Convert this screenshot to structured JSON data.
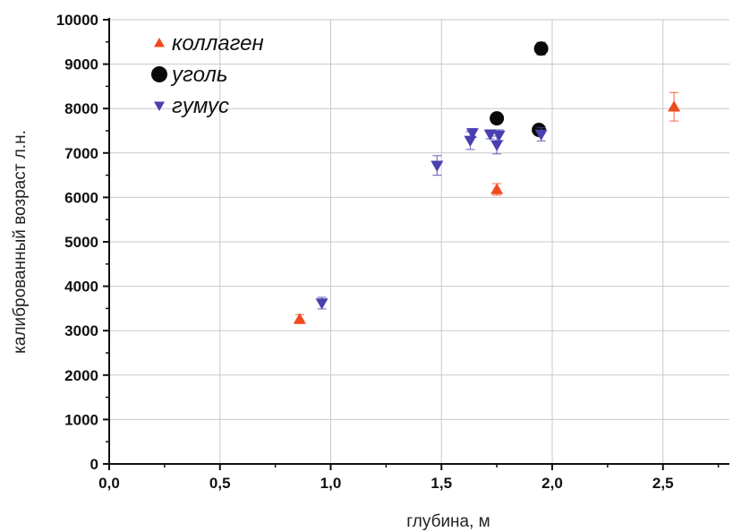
{
  "chart_data": {
    "type": "scatter",
    "xlabel": "глубина, м",
    "ylabel": "калиброванный возраст л.н.",
    "xlim": [
      0,
      2.8
    ],
    "ylim": [
      0,
      10000
    ],
    "xticks": [
      0.0,
      0.5,
      1.0,
      1.5,
      2.0,
      2.5
    ],
    "xtick_labels": [
      "0,0",
      "0,5",
      "1,0",
      "1,5",
      "2,0",
      "2,5"
    ],
    "yticks": [
      0,
      1000,
      2000,
      3000,
      4000,
      5000,
      6000,
      7000,
      8000,
      9000,
      10000
    ],
    "ytick_labels": [
      "0",
      "1000",
      "2000",
      "3000",
      "4000",
      "5000",
      "6000",
      "7000",
      "8000",
      "9000",
      "10000"
    ],
    "grid": true,
    "legend_position": "top-left",
    "series": [
      {
        "name": "коллаген",
        "marker": "triangle-up",
        "color": "#f04a1e",
        "points": [
          {
            "x": 0.86,
            "y": 3260,
            "err": 100
          },
          {
            "x": 1.75,
            "y": 6180,
            "err": 130
          },
          {
            "x": 2.55,
            "y": 8040,
            "err": 320
          }
        ]
      },
      {
        "name": "уголь",
        "marker": "circle",
        "color": "#0a0a0a",
        "points": [
          {
            "x": 1.75,
            "y": 7780,
            "err": 120
          },
          {
            "x": 1.95,
            "y": 9350,
            "err": 140
          },
          {
            "x": 1.94,
            "y": 7520,
            "err": 80
          }
        ]
      },
      {
        "name": "гумус",
        "marker": "triangle-down",
        "color": "#4a3fb0",
        "points": [
          {
            "x": 0.96,
            "y": 3620,
            "err": 130
          },
          {
            "x": 1.48,
            "y": 6720,
            "err": 220
          },
          {
            "x": 1.63,
            "y": 7280,
            "err": 200
          },
          {
            "x": 1.64,
            "y": 7450,
            "err": 100
          },
          {
            "x": 1.72,
            "y": 7420,
            "err": 100
          },
          {
            "x": 1.75,
            "y": 7180,
            "err": 200
          },
          {
            "x": 1.76,
            "y": 7400,
            "err": 120
          },
          {
            "x": 1.95,
            "y": 7420,
            "err": 150
          }
        ]
      }
    ]
  }
}
